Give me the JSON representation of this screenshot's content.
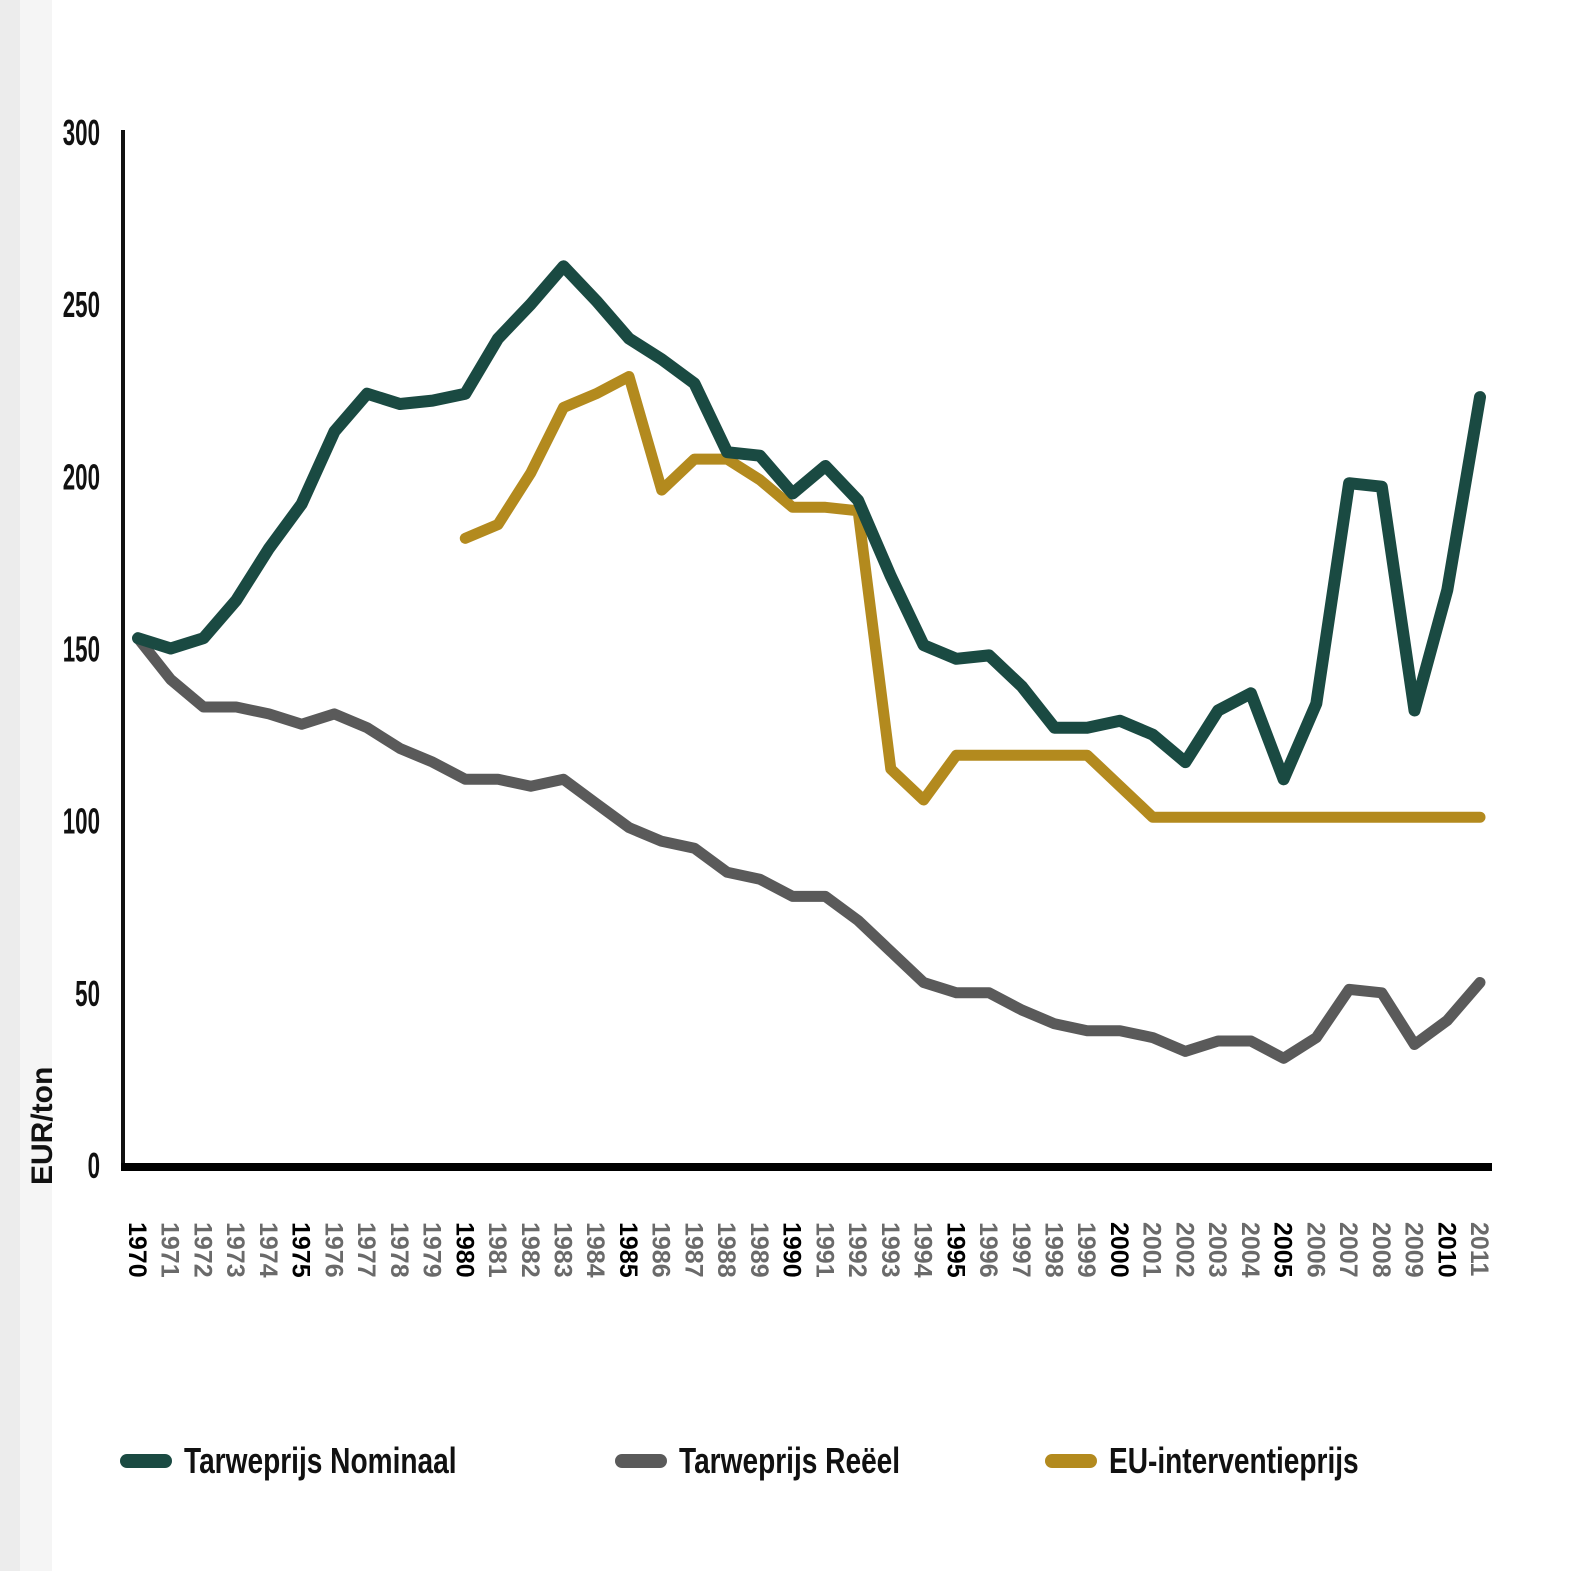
{
  "chart_data": {
    "type": "line",
    "title": "",
    "xlabel": "",
    "ylabel": "EUR/ton",
    "ylim": [
      0,
      300
    ],
    "yticks": [
      "0",
      "50",
      "100",
      "150",
      "200",
      "250",
      "300"
    ],
    "grid": false,
    "legend_position": "bottom",
    "x": [
      1970,
      1971,
      1972,
      1973,
      1974,
      1975,
      1976,
      1977,
      1978,
      1979,
      1980,
      1981,
      1982,
      1983,
      1984,
      1985,
      1986,
      1987,
      1988,
      1989,
      1990,
      1991,
      1992,
      1993,
      1994,
      1995,
      1996,
      1997,
      1998,
      1999,
      2000,
      2001,
      2002,
      2003,
      2004,
      2005,
      2006,
      2007,
      2008,
      2009,
      2010,
      2011
    ],
    "xtick_labels": [
      "1970",
      "1971",
      "1972",
      "1973",
      "1974",
      "1975",
      "1976",
      "1977",
      "1978",
      "1979",
      "1980",
      "1981",
      "1982",
      "1983",
      "1984",
      "1985",
      "1986",
      "1987",
      "1988",
      "1989",
      "1990",
      "1991",
      "1992",
      "1993",
      "1994",
      "1995",
      "1996",
      "1997",
      "1998",
      "1999",
      "2000",
      "2001",
      "2002",
      "2003",
      "2004",
      "2005",
      "2006",
      "2007",
      "2008",
      "2009",
      "2010",
      "2011"
    ],
    "bold_years": [
      "1970",
      "1975",
      "1980",
      "1985",
      "1990",
      "1995",
      "2000",
      "2005",
      "2010"
    ],
    "series": [
      {
        "name": "Tarweprijs Nominaal",
        "color": "#1a4a42",
        "values": [
          153,
          150,
          153,
          164,
          179,
          192,
          213,
          224,
          221,
          222,
          224,
          240,
          250,
          261,
          251,
          240,
          234,
          227,
          207,
          206,
          195,
          203,
          193,
          171,
          151,
          147,
          148,
          139,
          127,
          127,
          129,
          125,
          117,
          132,
          137,
          112,
          134,
          198,
          197,
          132,
          167,
          223
        ]
      },
      {
        "name": "Tarweprijs Reëel",
        "color": "#5a5a5a",
        "values": [
          153,
          141,
          133,
          133,
          131,
          128,
          131,
          127,
          121,
          117,
          112,
          112,
          110,
          112,
          105,
          98,
          94,
          92,
          85,
          83,
          78,
          78,
          71,
          62,
          53,
          50,
          50,
          45,
          41,
          39,
          39,
          37,
          33,
          36,
          36,
          31,
          37,
          51,
          50,
          35,
          42,
          53
        ]
      },
      {
        "name": "EU-interventieprijs",
        "color": "#b38a1e",
        "values": [
          null,
          null,
          null,
          null,
          null,
          null,
          null,
          null,
          null,
          null,
          182,
          186,
          201,
          220,
          224,
          229,
          196,
          205,
          205,
          199,
          191,
          191,
          190,
          115,
          106,
          119,
          119,
          119,
          119,
          119,
          110,
          101,
          101,
          101,
          101,
          101,
          101,
          101,
          101,
          101,
          101,
          101
        ]
      }
    ]
  }
}
